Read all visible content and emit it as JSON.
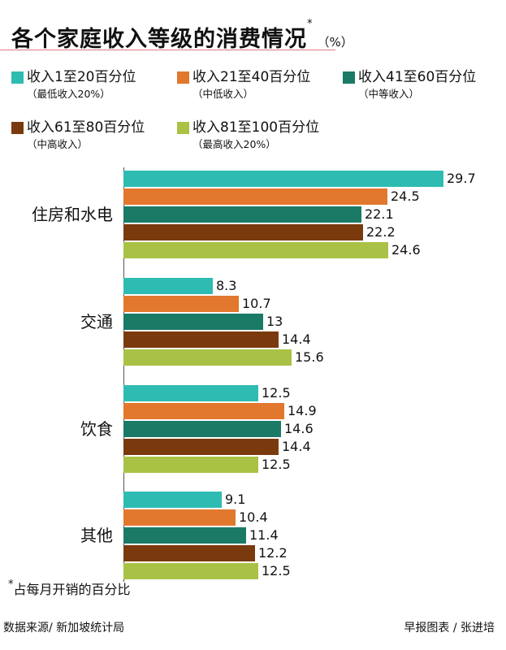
{
  "header": {
    "title": "各个家庭收入等级的消费情况",
    "title_marker": "*",
    "unit": "（%）"
  },
  "legend": [
    {
      "label": "收入1至20百分位",
      "sub": "（最低收入20%）",
      "color": "#2ebcb2"
    },
    {
      "label": "收入21至40百分位",
      "sub": "（中低收入）",
      "color": "#e2772e"
    },
    {
      "label": "收入41至60百分位",
      "sub": "（中等收入）",
      "color": "#1a7a66"
    },
    {
      "label": "收入61至80百分位",
      "sub": "（中高收入）",
      "color": "#7a3a0d"
    },
    {
      "label": "收入81至100百分位",
      "sub": "（最高收入20%）",
      "color": "#a9c245"
    }
  ],
  "chart_data": {
    "type": "bar",
    "orientation": "horizontal",
    "title": "各个家庭收入等级的消费情况",
    "unit": "%",
    "categories": [
      "住房和水电",
      "交通",
      "饮食",
      "其他"
    ],
    "series": [
      {
        "name": "收入1至20百分位",
        "values": [
          29.7,
          8.3,
          12.5,
          9.1
        ]
      },
      {
        "name": "收入21至40百分位",
        "values": [
          24.5,
          10.7,
          14.9,
          10.4
        ]
      },
      {
        "name": "收入41至60百分位",
        "values": [
          22.1,
          13,
          14.6,
          11.4
        ]
      },
      {
        "name": "收入61至80百分位",
        "values": [
          22.2,
          14.4,
          14.4,
          12.2
        ]
      },
      {
        "name": "收入81至100百分位",
        "values": [
          24.6,
          15.6,
          12.5,
          12.5
        ]
      }
    ],
    "value_labels": [
      [
        "29.7",
        "8.3",
        "12.5",
        "9.1"
      ],
      [
        "24.5",
        "10.7",
        "14.9",
        "10.4"
      ],
      [
        "22.1",
        "13",
        "14.6",
        "11.4"
      ],
      [
        "22.2",
        "14.4",
        "14.4",
        "12.2"
      ],
      [
        "24.6",
        "15.6",
        "12.5",
        "12.5"
      ]
    ],
    "xlim": [
      0,
      29.7
    ],
    "grid": false,
    "legend_position": "top"
  },
  "footer": {
    "footnote_marker": "*",
    "footnote": "占每月开销的百分比",
    "source_left": "数据来源/ 新加坡统计局",
    "source_right": "早报图表 / 张进培"
  }
}
